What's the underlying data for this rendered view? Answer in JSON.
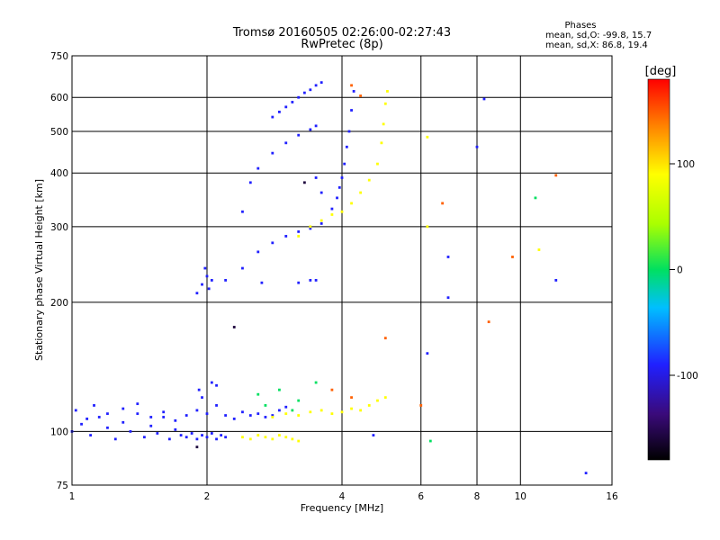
{
  "chart_data": {
    "type": "scatter",
    "title": "Tromsø 20160505 02:26:00-02:27:43",
    "subtitle": "RwPretec (8p)",
    "xlabel": "Frequency [MHz]",
    "ylabel": "Stationary phase Virtual Height [km]",
    "x_scale": "log",
    "y_scale": "log",
    "xlim": [
      1,
      16
    ],
    "ylim": [
      75,
      750
    ],
    "x_ticks": [
      1,
      2,
      4,
      6,
      8,
      10,
      16
    ],
    "x_tick_labels": [
      "1",
      "2",
      "4",
      "6",
      "8",
      "10",
      "16"
    ],
    "y_ticks": [
      75,
      100,
      200,
      300,
      400,
      500,
      600,
      750
    ],
    "y_tick_labels": [
      "75",
      "100",
      "200",
      "300",
      "400",
      "500",
      "600",
      "750"
    ],
    "grid": true,
    "stats": {
      "heading": "Phases",
      "line_o": "mean, sd,O: -99.8, 15.7",
      "line_x": "mean, sd,X:  86.8, 19.4"
    },
    "colorbar": {
      "label": "[deg]",
      "range": [
        -180,
        180
      ],
      "ticks": [
        100,
        0,
        -100
      ],
      "tick_labels": [
        "100",
        "0",
        "-100"
      ]
    },
    "series": [
      {
        "phase": -100,
        "points": [
          [
            1.0,
            100
          ],
          [
            1.05,
            104
          ],
          [
            1.1,
            98
          ],
          [
            1.15,
            108
          ],
          [
            1.2,
            102
          ],
          [
            1.25,
            96
          ],
          [
            1.3,
            105
          ],
          [
            1.35,
            100
          ],
          [
            1.4,
            110
          ],
          [
            1.45,
            97
          ],
          [
            1.5,
            103
          ],
          [
            1.55,
            99
          ],
          [
            1.6,
            108
          ],
          [
            1.65,
            96
          ],
          [
            1.7,
            101
          ],
          [
            1.75,
            98
          ],
          [
            1.8,
            97
          ],
          [
            1.85,
            99
          ],
          [
            1.9,
            96
          ],
          [
            1.95,
            98
          ],
          [
            2.0,
            97
          ],
          [
            2.05,
            99
          ],
          [
            2.1,
            96
          ],
          [
            2.15,
            98
          ],
          [
            2.2,
            97
          ],
          [
            1.02,
            112
          ],
          [
            1.08,
            107
          ],
          [
            1.12,
            115
          ],
          [
            1.2,
            110
          ],
          [
            1.3,
            113
          ],
          [
            1.4,
            116
          ],
          [
            1.5,
            108
          ],
          [
            1.6,
            111
          ],
          [
            1.7,
            106
          ],
          [
            1.8,
            109
          ],
          [
            1.9,
            112
          ],
          [
            2.0,
            110
          ],
          [
            2.1,
            115
          ],
          [
            2.2,
            109
          ],
          [
            2.3,
            107
          ],
          [
            2.4,
            111
          ],
          [
            2.5,
            109
          ],
          [
            2.6,
            110
          ],
          [
            2.7,
            108
          ],
          [
            2.8,
            109
          ],
          [
            2.9,
            112
          ],
          [
            3.0,
            114
          ],
          [
            1.95,
            120
          ],
          [
            2.05,
            130
          ],
          [
            1.92,
            125
          ],
          [
            2.1,
            128
          ],
          [
            1.9,
            210
          ],
          [
            1.95,
            220
          ],
          [
            2.0,
            230
          ],
          [
            2.05,
            225
          ],
          [
            1.98,
            240
          ],
          [
            2.02,
            215
          ],
          [
            2.2,
            225
          ],
          [
            2.4,
            240
          ],
          [
            2.6,
            262
          ],
          [
            2.8,
            275
          ],
          [
            3.0,
            285
          ],
          [
            3.2,
            292
          ],
          [
            3.4,
            297
          ],
          [
            3.6,
            305
          ],
          [
            3.8,
            330
          ],
          [
            3.9,
            350
          ],
          [
            3.95,
            370
          ],
          [
            4.0,
            390
          ],
          [
            4.05,
            420
          ],
          [
            4.1,
            460
          ],
          [
            4.15,
            500
          ],
          [
            4.2,
            560
          ],
          [
            4.25,
            620
          ],
          [
            2.8,
            540
          ],
          [
            2.9,
            555
          ],
          [
            3.0,
            570
          ],
          [
            3.1,
            585
          ],
          [
            3.2,
            600
          ],
          [
            3.3,
            615
          ],
          [
            3.4,
            625
          ],
          [
            3.5,
            640
          ],
          [
            3.6,
            650
          ],
          [
            2.6,
            410
          ],
          [
            2.8,
            445
          ],
          [
            3.0,
            470
          ],
          [
            3.2,
            490
          ],
          [
            3.4,
            505
          ],
          [
            3.5,
            515
          ],
          [
            2.5,
            380
          ],
          [
            2.4,
            325
          ],
          [
            3.5,
            390
          ],
          [
            3.6,
            360
          ],
          [
            3.4,
            225
          ],
          [
            3.5,
            225
          ],
          [
            3.2,
            222
          ],
          [
            2.65,
            222
          ],
          [
            4.7,
            98
          ],
          [
            6.2,
            152
          ],
          [
            6.9,
            255
          ],
          [
            6.9,
            205
          ],
          [
            8.0,
            460
          ],
          [
            8.3,
            595
          ],
          [
            12.0,
            225
          ],
          [
            14.0,
            80
          ]
        ]
      },
      {
        "phase": 100,
        "points": [
          [
            2.4,
            97
          ],
          [
            2.5,
            96
          ],
          [
            2.6,
            98
          ],
          [
            2.7,
            97
          ],
          [
            2.8,
            96
          ],
          [
            2.9,
            98
          ],
          [
            3.0,
            97
          ],
          [
            3.1,
            96
          ],
          [
            3.2,
            95
          ],
          [
            2.8,
            108
          ],
          [
            3.0,
            110
          ],
          [
            3.2,
            109
          ],
          [
            3.4,
            111
          ],
          [
            3.6,
            112
          ],
          [
            3.8,
            110
          ],
          [
            4.0,
            111
          ],
          [
            4.2,
            113
          ],
          [
            4.4,
            112
          ],
          [
            4.6,
            115
          ],
          [
            4.8,
            118
          ],
          [
            5.0,
            120
          ],
          [
            3.2,
            285
          ],
          [
            3.4,
            300
          ],
          [
            3.6,
            310
          ],
          [
            3.8,
            320
          ],
          [
            4.0,
            325
          ],
          [
            4.2,
            340
          ],
          [
            4.4,
            360
          ],
          [
            4.6,
            385
          ],
          [
            4.8,
            420
          ],
          [
            4.9,
            470
          ],
          [
            4.95,
            520
          ],
          [
            5.0,
            580
          ],
          [
            5.05,
            620
          ],
          [
            6.2,
            485
          ],
          [
            6.2,
            300
          ],
          [
            11.0,
            265
          ]
        ]
      },
      {
        "phase": 0,
        "points": [
          [
            2.6,
            122
          ],
          [
            2.9,
            125
          ],
          [
            3.2,
            118
          ],
          [
            3.5,
            130
          ],
          [
            2.7,
            115
          ],
          [
            3.1,
            112
          ],
          [
            6.3,
            95
          ],
          [
            10.8,
            350
          ]
        ]
      },
      {
        "phase": 150,
        "points": [
          [
            3.8,
            125
          ],
          [
            4.2,
            120
          ],
          [
            4.2,
            640
          ],
          [
            5.0,
            165
          ],
          [
            6.0,
            115
          ],
          [
            6.7,
            340
          ],
          [
            8.5,
            180
          ],
          [
            9.6,
            255
          ],
          [
            12.0,
            395
          ],
          [
            4.4,
            605
          ]
        ]
      },
      {
        "phase": -160,
        "points": [
          [
            1.9,
            92
          ],
          [
            2.3,
            175
          ],
          [
            3.3,
            380
          ]
        ]
      }
    ]
  }
}
